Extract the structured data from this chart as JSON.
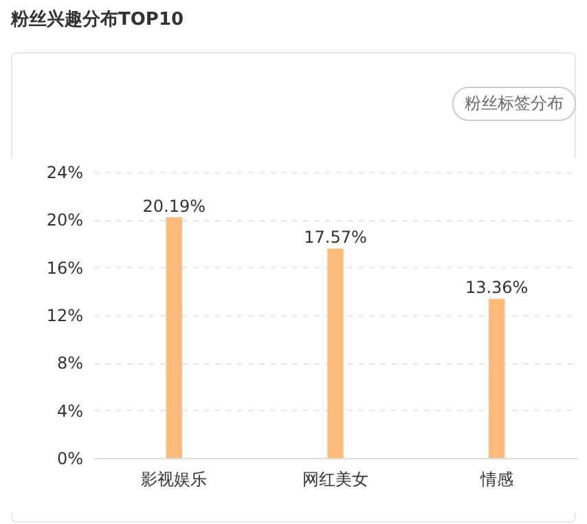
{
  "chart_data": {
    "type": "bar",
    "title": "粉丝兴趣分布TOP10",
    "annotations": [
      "粉丝标签分布"
    ],
    "categories": [
      "影视娱乐",
      "网红美女",
      "情感"
    ],
    "series": [
      {
        "color": "#ffbb7a",
        "values": [
          20.19,
          17.57,
          13.36
        ],
        "value_labels": [
          "20.19%",
          "17.57%",
          "13.36%"
        ]
      }
    ],
    "ylim": [
      0,
      24
    ],
    "yticks": [
      {
        "value": 0,
        "label": "0%"
      },
      {
        "value": 4,
        "label": "4%"
      },
      {
        "value": 8,
        "label": "8%"
      },
      {
        "value": 12,
        "label": "12%"
      },
      {
        "value": 16,
        "label": "16%"
      },
      {
        "value": 20,
        "label": "20%"
      },
      {
        "value": 24,
        "label": "24%"
      }
    ],
    "grid": "y"
  }
}
